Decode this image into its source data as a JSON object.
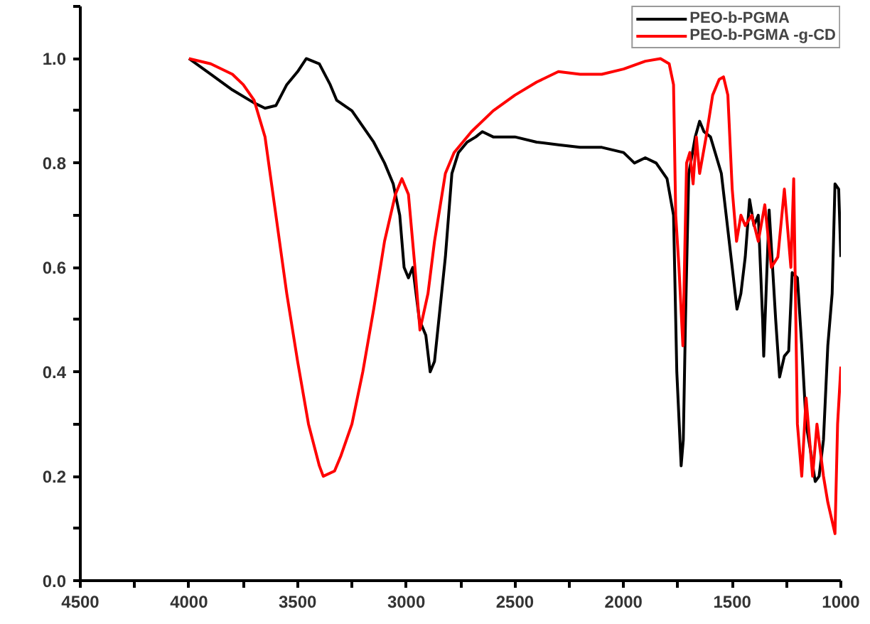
{
  "chart_data": {
    "type": "line",
    "legend": "top right",
    "grid": false,
    "line_style": "solid",
    "marker": "none",
    "xlim": [
      4500,
      1000
    ],
    "ylim": [
      0,
      1.1
    ],
    "xticks": [
      4500,
      {
        "value": 4250,
        "label": null
      },
      4000,
      {
        "value": 3750,
        "label": null
      },
      3500,
      {
        "value": 3250,
        "label": null
      },
      3000,
      {
        "value": 2750,
        "label": null
      },
      2500,
      {
        "value": 2250,
        "label": null
      },
      2000,
      {
        "value": 1750,
        "label": null
      },
      1500,
      {
        "value": 1250,
        "label": null
      },
      1000
    ],
    "yticks": [
      {
        "value": 0,
        "label": "0.0"
      },
      {
        "value": 0.1,
        "label": null
      },
      {
        "value": 0.2,
        "label": "0.2"
      },
      {
        "value": 0.3,
        "label": null
      },
      {
        "value": 0.4,
        "label": "0.4"
      },
      {
        "value": 0.5,
        "label": null
      },
      {
        "value": 0.6,
        "label": "0.6"
      },
      {
        "value": 0.7,
        "label": null
      },
      {
        "value": 0.8,
        "label": "0.8"
      },
      {
        "value": 0.9,
        "label": null
      },
      {
        "value": 1.0,
        "label": "1.0"
      },
      {
        "value": 1.1,
        "label": null
      }
    ],
    "series": [
      {
        "name": "PEO-b-PGMA",
        "color": "#000000",
        "x": [
          4000,
          3900,
          3800,
          3700,
          3650,
          3600,
          3550,
          3500,
          3460,
          3400,
          3350,
          3320,
          3250,
          3200,
          3150,
          3100,
          3060,
          3030,
          3010,
          2990,
          2970,
          2940,
          2910,
          2890,
          2870,
          2850,
          2820,
          2790,
          2760,
          2720,
          2680,
          2650,
          2600,
          2500,
          2400,
          2300,
          2200,
          2100,
          2000,
          1950,
          1900,
          1850,
          1800,
          1770,
          1755,
          1735,
          1725,
          1715,
          1700,
          1670,
          1650,
          1630,
          1600,
          1550,
          1500,
          1478,
          1460,
          1440,
          1420,
          1400,
          1380,
          1360,
          1355,
          1330,
          1300,
          1282,
          1260,
          1240,
          1224,
          1200,
          1180,
          1160,
          1140,
          1118,
          1100,
          1080,
          1060,
          1040,
          1027,
          1010,
          1000
        ],
        "values": [
          1.0,
          0.97,
          0.94,
          0.915,
          0.905,
          0.91,
          0.95,
          0.975,
          1.0,
          0.99,
          0.95,
          0.92,
          0.9,
          0.87,
          0.84,
          0.8,
          0.76,
          0.7,
          0.6,
          0.58,
          0.6,
          0.5,
          0.47,
          0.4,
          0.42,
          0.5,
          0.62,
          0.78,
          0.82,
          0.84,
          0.85,
          0.86,
          0.85,
          0.85,
          0.84,
          0.835,
          0.83,
          0.83,
          0.82,
          0.8,
          0.81,
          0.8,
          0.77,
          0.7,
          0.4,
          0.22,
          0.27,
          0.5,
          0.78,
          0.85,
          0.88,
          0.86,
          0.85,
          0.78,
          0.6,
          0.52,
          0.55,
          0.62,
          0.73,
          0.68,
          0.7,
          0.5,
          0.43,
          0.71,
          0.5,
          0.39,
          0.43,
          0.44,
          0.59,
          0.58,
          0.45,
          0.3,
          0.25,
          0.19,
          0.2,
          0.27,
          0.45,
          0.55,
          0.76,
          0.75,
          0.62
        ]
      },
      {
        "name": "PEO-b-PGMA -g-CD",
        "color": "#ff0000",
        "x": [
          4000,
          3900,
          3800,
          3750,
          3700,
          3650,
          3600,
          3550,
          3500,
          3450,
          3400,
          3382,
          3330,
          3300,
          3250,
          3200,
          3150,
          3100,
          3050,
          3020,
          2990,
          2960,
          2937,
          2900,
          2870,
          2820,
          2780,
          2700,
          2600,
          2500,
          2400,
          2300,
          2200,
          2100,
          2000,
          1900,
          1830,
          1790,
          1770,
          1760,
          1745,
          1727,
          1710,
          1695,
          1680,
          1665,
          1650,
          1620,
          1590,
          1560,
          1540,
          1520,
          1500,
          1480,
          1460,
          1440,
          1410,
          1380,
          1350,
          1320,
          1290,
          1260,
          1230,
          1217,
          1200,
          1180,
          1160,
          1130,
          1110,
          1080,
          1060,
          1027,
          1015,
          1000
        ],
        "values": [
          1.0,
          0.99,
          0.97,
          0.95,
          0.92,
          0.85,
          0.7,
          0.55,
          0.42,
          0.3,
          0.22,
          0.2,
          0.21,
          0.24,
          0.3,
          0.4,
          0.52,
          0.65,
          0.74,
          0.77,
          0.74,
          0.6,
          0.48,
          0.55,
          0.65,
          0.78,
          0.82,
          0.86,
          0.9,
          0.93,
          0.955,
          0.975,
          0.97,
          0.97,
          0.98,
          0.995,
          1.0,
          0.99,
          0.95,
          0.7,
          0.6,
          0.45,
          0.8,
          0.82,
          0.76,
          0.85,
          0.78,
          0.85,
          0.93,
          0.96,
          0.965,
          0.93,
          0.75,
          0.65,
          0.7,
          0.68,
          0.7,
          0.65,
          0.72,
          0.6,
          0.62,
          0.75,
          0.6,
          0.77,
          0.3,
          0.2,
          0.35,
          0.2,
          0.3,
          0.2,
          0.15,
          0.09,
          0.3,
          0.41
        ]
      }
    ]
  }
}
